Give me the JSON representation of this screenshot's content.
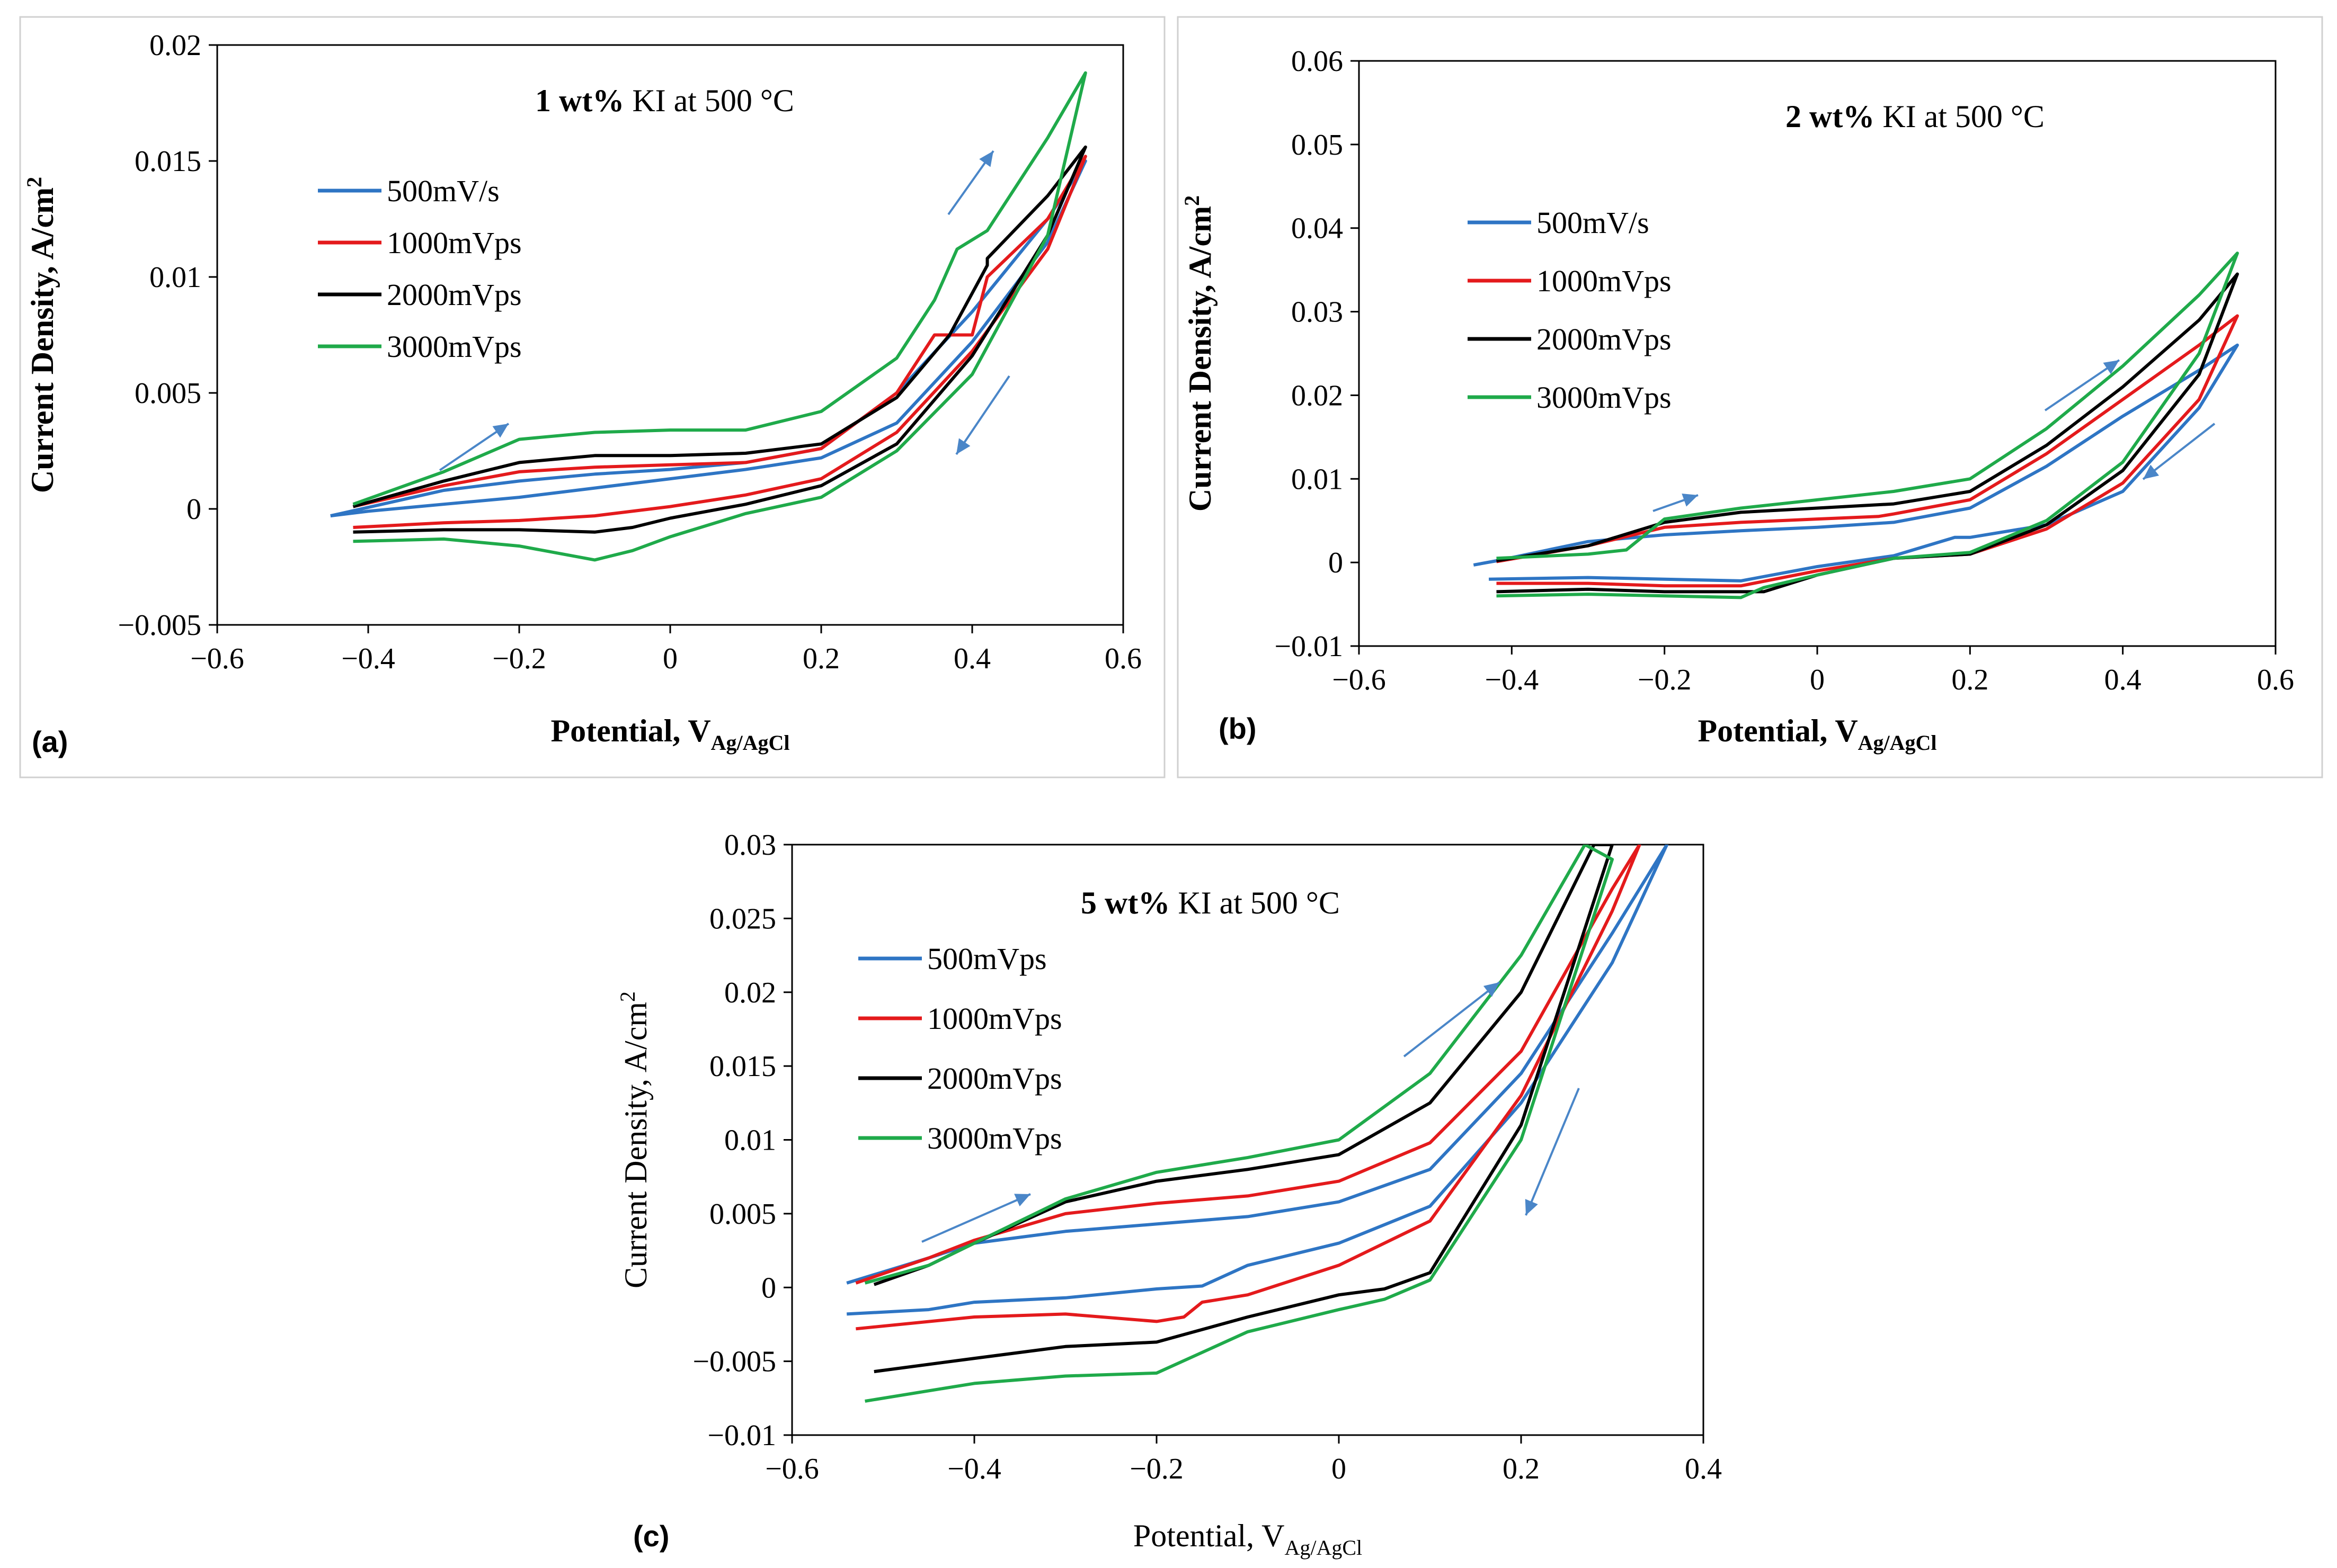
{
  "chart_data": [
    {
      "type": "line",
      "panel_label": "(a)",
      "title_bold": "1 wt%",
      "title_rest": " KI at 500 °C",
      "xlabel_main": "Potential, V",
      "xlabel_sub": "Ag/AgCl",
      "ylabel_main": "Current Density, A/cm",
      "ylabel_sup": "2",
      "xlim": [
        -0.6,
        0.6
      ],
      "ylim": [
        -0.005,
        0.02
      ],
      "x_ticks": [
        "−0.6",
        "−0.4",
        "−0.2",
        "0",
        "0.2",
        "0.4",
        "0.6"
      ],
      "y_ticks": [
        "−0.005",
        "0",
        "0.005",
        "0.01",
        "0.015",
        "0.02"
      ],
      "series": [
        {
          "name": "500mV/s",
          "color": "#2E75C4",
          "x": [
            -0.45,
            -0.3,
            -0.2,
            -0.1,
            0,
            0.1,
            0.2,
            0.3,
            0.4,
            0.5,
            0.55,
            0.5,
            0.4,
            0.3,
            0.2,
            0.1,
            0,
            -0.1,
            -0.2,
            -0.3,
            -0.4,
            -0.45
          ],
          "y": [
            -0.0003,
            0.0008,
            0.0012,
            0.0015,
            0.0017,
            0.002,
            0.0026,
            0.005,
            0.0085,
            0.0125,
            0.015,
            0.0115,
            0.0072,
            0.0037,
            0.0022,
            0.0017,
            0.0013,
            0.0009,
            0.0005,
            0.0002,
            -0.0001,
            -0.0003
          ]
        },
        {
          "name": "1000mVps",
          "color": "#E41A1C",
          "x": [
            -0.42,
            -0.3,
            -0.2,
            -0.1,
            0,
            0.1,
            0.2,
            0.3,
            0.35,
            0.4,
            0.42,
            0.5,
            0.55,
            0.5,
            0.4,
            0.3,
            0.2,
            0.1,
            0,
            -0.1,
            -0.2,
            -0.3,
            -0.42
          ],
          "y": [
            0.0001,
            0.001,
            0.0016,
            0.0018,
            0.0019,
            0.002,
            0.0026,
            0.005,
            0.0075,
            0.0075,
            0.01,
            0.0125,
            0.0152,
            0.0112,
            0.0068,
            0.0033,
            0.0013,
            0.0006,
            0.0001,
            -0.0003,
            -0.0005,
            -0.0006,
            -0.0008
          ]
        },
        {
          "name": "2000mVps",
          "color": "#000000",
          "x": [
            -0.42,
            -0.3,
            -0.2,
            -0.1,
            0,
            0.1,
            0.2,
            0.3,
            0.37,
            0.42,
            0.42,
            0.5,
            0.55,
            0.5,
            0.4,
            0.3,
            0.2,
            0.1,
            0,
            -0.05,
            -0.1,
            -0.2,
            -0.3,
            -0.42
          ],
          "y": [
            0.0001,
            0.0012,
            0.002,
            0.0023,
            0.0023,
            0.0024,
            0.0028,
            0.0048,
            0.0075,
            0.0105,
            0.0108,
            0.0135,
            0.0156,
            0.0118,
            0.0066,
            0.0028,
            0.001,
            0.0002,
            -0.0004,
            -0.0008,
            -0.001,
            -0.0009,
            -0.0009,
            -0.001
          ]
        },
        {
          "name": "3000mVps",
          "color": "#1FAA4A",
          "x": [
            -0.42,
            -0.3,
            -0.2,
            -0.1,
            0,
            0.1,
            0.2,
            0.3,
            0.35,
            0.38,
            0.42,
            0.5,
            0.55,
            0.5,
            0.4,
            0.3,
            0.2,
            0.1,
            0,
            -0.05,
            -0.1,
            -0.2,
            -0.3,
            -0.42
          ],
          "y": [
            0.0002,
            0.0016,
            0.003,
            0.0033,
            0.0034,
            0.0034,
            0.0042,
            0.0065,
            0.009,
            0.0112,
            0.012,
            0.016,
            0.0188,
            0.0118,
            0.0058,
            0.0025,
            0.0005,
            -0.0002,
            -0.0012,
            -0.0018,
            -0.0022,
            -0.0016,
            -0.0013,
            -0.0014
          ]
        }
      ]
    },
    {
      "type": "line",
      "panel_label": "(b)",
      "title_bold": "2 wt%",
      "title_rest": " KI at 500 °C",
      "xlabel_main": "Potential, V",
      "xlabel_sub": "Ag/AgCl",
      "ylabel_main": "Current Density, A/cm",
      "ylabel_sup": "2",
      "xlim": [
        -0.6,
        0.6
      ],
      "ylim": [
        -0.01,
        0.06
      ],
      "x_ticks": [
        "−0.6",
        "−0.4",
        "−0.2",
        "0",
        "0.2",
        "0.4",
        "0.6"
      ],
      "y_ticks": [
        "−0.01",
        "0",
        "0.01",
        "0.02",
        "0.03",
        "0.04",
        "0.05",
        "0.06"
      ],
      "series": [
        {
          "name": "500mV/s",
          "color": "#2E75C4",
          "x": [
            -0.45,
            -0.42,
            -0.3,
            -0.2,
            -0.1,
            0,
            0.1,
            0.2,
            0.3,
            0.4,
            0.5,
            0.55,
            0.5,
            0.4,
            0.3,
            0.2,
            0.18,
            0.1,
            0,
            -0.1,
            -0.2,
            -0.3,
            -0.43
          ],
          "y": [
            -0.0003,
            0.0002,
            0.0025,
            0.0033,
            0.0038,
            0.0042,
            0.0048,
            0.0065,
            0.0115,
            0.0175,
            0.023,
            0.026,
            0.0185,
            0.0085,
            0.0045,
            0.003,
            0.003,
            0.0008,
            -0.0005,
            -0.0022,
            -0.002,
            -0.0018,
            -0.002
          ]
        },
        {
          "name": "1000mVps",
          "color": "#E41A1C",
          "x": [
            -0.42,
            -0.3,
            -0.2,
            -0.1,
            0,
            0.08,
            0.1,
            0.2,
            0.3,
            0.4,
            0.5,
            0.55,
            0.5,
            0.4,
            0.3,
            0.2,
            0.1,
            0,
            -0.1,
            -0.2,
            -0.3,
            -0.42
          ],
          "y": [
            0.0001,
            0.002,
            0.0042,
            0.0048,
            0.0052,
            0.0055,
            0.0058,
            0.0075,
            0.013,
            0.0195,
            0.026,
            0.0295,
            0.0195,
            0.0095,
            0.004,
            0.001,
            0.0005,
            -0.001,
            -0.0028,
            -0.0028,
            -0.0025,
            -0.0025
          ]
        },
        {
          "name": "2000mVps",
          "color": "#000000",
          "x": [
            -0.42,
            -0.3,
            -0.2,
            -0.1,
            0,
            0.1,
            0.2,
            0.3,
            0.4,
            0.5,
            0.55,
            0.5,
            0.4,
            0.3,
            0.2,
            0.1,
            0,
            -0.07,
            -0.1,
            -0.2,
            -0.3,
            -0.42
          ],
          "y": [
            0.0002,
            0.002,
            0.0048,
            0.006,
            0.0065,
            0.007,
            0.0085,
            0.014,
            0.021,
            0.029,
            0.0345,
            0.0225,
            0.011,
            0.0045,
            0.001,
            0.0005,
            -0.0015,
            -0.0035,
            -0.0035,
            -0.0035,
            -0.0032,
            -0.0035
          ]
        },
        {
          "name": "3000mVps",
          "color": "#1FAA4A",
          "x": [
            -0.42,
            -0.3,
            -0.25,
            -0.2,
            -0.1,
            0,
            0.1,
            0.2,
            0.3,
            0.4,
            0.5,
            0.55,
            0.5,
            0.4,
            0.3,
            0.2,
            0.1,
            0,
            -0.07,
            -0.1,
            -0.2,
            -0.3,
            -0.42
          ],
          "y": [
            0.0005,
            0.001,
            0.0015,
            0.0052,
            0.0065,
            0.0075,
            0.0085,
            0.01,
            0.016,
            0.0235,
            0.032,
            0.037,
            0.025,
            0.012,
            0.005,
            0.0012,
            0.0005,
            -0.0015,
            -0.003,
            -0.0042,
            -0.004,
            -0.0038,
            -0.004
          ]
        }
      ]
    },
    {
      "type": "line",
      "panel_label": "(c)",
      "title_bold": "5 wt%",
      "title_rest": " KI at 500 °C",
      "xlabel_main": "Potential, V",
      "xlabel_sub": "Ag/AgCl",
      "ylabel_main": "Current Density, A/cm",
      "ylabel_sup": "2",
      "xlim": [
        -0.6,
        0.4
      ],
      "ylim": [
        -0.01,
        0.03
      ],
      "x_ticks": [
        "−0.6",
        "−0.4",
        "−0.2",
        "0",
        "0.2",
        "0.4"
      ],
      "y_ticks": [
        "−0.01",
        "−0.005",
        "0",
        "0.005",
        "0.01",
        "0.015",
        "0.02",
        "0.025",
        "0.03"
      ],
      "series": [
        {
          "name": "500mVps",
          "color": "#2E75C4",
          "x": [
            -0.54,
            -0.45,
            -0.4,
            -0.3,
            -0.2,
            -0.1,
            0,
            0.1,
            0.2,
            0.3,
            0.36,
            0.3,
            0.2,
            0.1,
            0,
            -0.1,
            -0.15,
            -0.2,
            -0.3,
            -0.4,
            -0.45,
            -0.54
          ],
          "y": [
            0.0003,
            0.002,
            0.003,
            0.0038,
            0.0043,
            0.0048,
            0.0058,
            0.008,
            0.0145,
            0.024,
            0.03,
            0.022,
            0.0125,
            0.0055,
            0.003,
            0.0015,
            0.0001,
            -0.0001,
            -0.0007,
            -0.001,
            -0.0015,
            -0.0018
          ]
        },
        {
          "name": "1000mVps",
          "color": "#E41A1C",
          "x": [
            -0.53,
            -0.45,
            -0.4,
            -0.3,
            -0.2,
            -0.1,
            0,
            0.1,
            0.2,
            0.3,
            0.33,
            0.3,
            0.2,
            0.1,
            0,
            -0.1,
            -0.15,
            -0.17,
            -0.2,
            -0.3,
            -0.4,
            -0.53
          ],
          "y": [
            0.0003,
            0.002,
            0.0032,
            0.005,
            0.0057,
            0.0062,
            0.0072,
            0.0098,
            0.016,
            0.027,
            0.03,
            0.0255,
            0.013,
            0.0045,
            0.0015,
            -0.0005,
            -0.001,
            -0.002,
            -0.0023,
            -0.0018,
            -0.002,
            -0.0028
          ]
        },
        {
          "name": "2000mVps",
          "color": "#000000",
          "x": [
            -0.51,
            -0.45,
            -0.4,
            -0.3,
            -0.2,
            -0.1,
            0,
            0.1,
            0.2,
            0.28,
            0.3,
            0.2,
            0.1,
            0.05,
            0,
            -0.1,
            -0.2,
            -0.3,
            -0.4,
            -0.51
          ],
          "y": [
            0.0002,
            0.0015,
            0.003,
            0.0058,
            0.0072,
            0.008,
            0.009,
            0.0125,
            0.02,
            0.03,
            0.03,
            0.011,
            0.001,
            -0.0001,
            -0.0005,
            -0.002,
            -0.0037,
            -0.004,
            -0.0048,
            -0.0057
          ]
        },
        {
          "name": "3000mVps",
          "color": "#1FAA4A",
          "x": [
            -0.52,
            -0.45,
            -0.4,
            -0.3,
            -0.2,
            -0.1,
            0,
            0.1,
            0.2,
            0.27,
            0.3,
            0.2,
            0.1,
            0.05,
            0,
            -0.1,
            -0.2,
            -0.3,
            -0.4,
            -0.52
          ],
          "y": [
            0.0003,
            0.0015,
            0.003,
            0.006,
            0.0078,
            0.0088,
            0.01,
            0.0145,
            0.0225,
            0.03,
            0.029,
            0.01,
            0.0005,
            -0.0008,
            -0.0015,
            -0.003,
            -0.0058,
            -0.006,
            -0.0065,
            -0.0077
          ]
        }
      ]
    }
  ]
}
